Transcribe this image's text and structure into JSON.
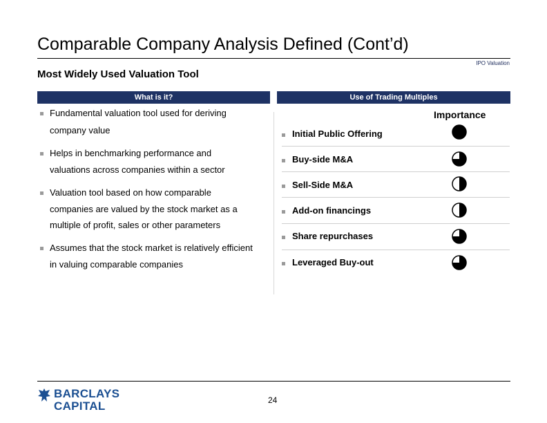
{
  "header": {
    "title": "Comparable Company Analysis Defined (Cont’d)",
    "tag": "IPO Valuation",
    "subtitle": "Most Widely Used Valuation Tool"
  },
  "left": {
    "heading": "What is it?",
    "bullets": [
      {
        "lines": [
          "Fundamental valuation tool used for deriving",
          "company value"
        ]
      },
      {
        "lines": [
          "Helps in benchmarking performance and",
          "valuations across companies within a sector"
        ]
      },
      {
        "lines": [
          "Valuation tool based on how comparable",
          "companies are valued by the stock market as a",
          "multiple of profit, sales or other parameters"
        ]
      },
      {
        "lines": [
          "Assumes that the stock market is relatively efficient",
          "in valuing comparable companies"
        ]
      }
    ]
  },
  "right": {
    "heading": "Use of Trading Multiples",
    "importance_label": "Importance",
    "items": [
      {
        "label": "Initial Public Offering",
        "importance": 1.0
      },
      {
        "label": "Buy-side M&A",
        "importance": 0.75
      },
      {
        "label": "Sell-Side M&A",
        "importance": 0.5
      },
      {
        "label": "Add-on financings",
        "importance": 0.5
      },
      {
        "label": "Share repurchases",
        "importance": 0.75
      },
      {
        "label": "Leveraged Buy-out",
        "importance": 0.75
      }
    ]
  },
  "footer": {
    "logo_line1": "BARCLAYS",
    "logo_line2": "CAPITAL",
    "page_number": "24"
  },
  "colors": {
    "brand_navy": "#1e3264",
    "logo_blue": "#1b4f92"
  }
}
